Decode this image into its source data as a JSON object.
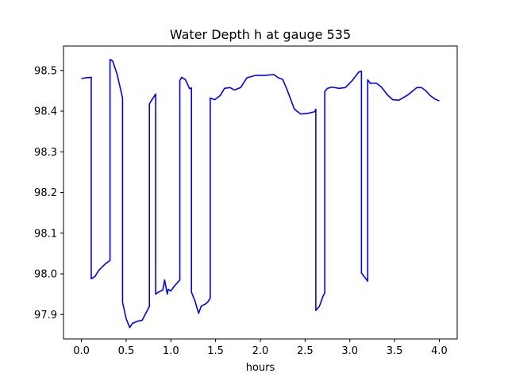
{
  "chart_data": {
    "type": "line",
    "title": "Water Depth h at gauge 535",
    "xlabel": "hours",
    "ylabel": "",
    "xlim": [
      -0.2,
      4.2
    ],
    "ylim": [
      97.84,
      98.56
    ],
    "xticks": [
      0.0,
      0.5,
      1.0,
      1.5,
      2.0,
      2.5,
      3.0,
      3.5,
      4.0
    ],
    "xtick_labels": [
      "0.0",
      "0.5",
      "1.0",
      "1.5",
      "2.0",
      "2.5",
      "3.0",
      "3.5",
      "4.0"
    ],
    "yticks": [
      97.9,
      98.0,
      98.1,
      98.2,
      98.3,
      98.4,
      98.5
    ],
    "ytick_labels": [
      "97.9",
      "98.0",
      "98.1",
      "98.2",
      "98.3",
      "98.4",
      "98.5"
    ],
    "grid": false,
    "legend": "none",
    "series": [
      {
        "color": "#0000ff",
        "x": [
          0.0,
          0.05,
          0.11,
          0.11,
          0.15,
          0.2,
          0.27,
          0.32,
          0.32,
          0.35,
          0.4,
          0.46,
          0.46,
          0.5,
          0.54,
          0.57,
          0.62,
          0.68,
          0.76,
          0.76,
          0.83,
          0.83,
          0.86,
          0.91,
          0.93,
          0.96,
          0.97,
          1.0,
          1.04,
          1.1,
          1.1,
          1.12,
          1.16,
          1.21,
          1.23,
          1.23,
          1.27,
          1.31,
          1.34,
          1.38,
          1.41,
          1.44,
          1.44,
          1.49,
          1.55,
          1.6,
          1.66,
          1.71,
          1.78,
          1.85,
          1.95,
          2.05,
          2.15,
          2.2,
          2.25,
          2.3,
          2.38,
          2.45,
          2.52,
          2.6,
          2.61,
          2.62,
          2.62,
          2.66,
          2.7,
          2.72,
          2.72,
          2.75,
          2.8,
          2.88,
          2.95,
          3.03,
          3.1,
          3.13,
          3.13,
          3.2,
          3.2,
          3.23,
          3.26,
          3.3,
          3.35,
          3.42,
          3.48,
          3.55,
          3.65,
          3.75,
          3.8,
          3.85,
          3.9,
          3.95,
          4.0
        ],
        "y": [
          98.48,
          98.482,
          98.483,
          97.988,
          97.993,
          98.01,
          98.025,
          98.033,
          98.527,
          98.523,
          98.49,
          98.432,
          97.93,
          97.89,
          97.868,
          97.878,
          97.883,
          97.886,
          97.92,
          98.418,
          98.442,
          97.95,
          97.955,
          97.96,
          97.985,
          97.95,
          97.962,
          97.958,
          97.97,
          97.985,
          98.475,
          98.483,
          98.478,
          98.455,
          98.457,
          97.955,
          97.933,
          97.903,
          97.921,
          97.925,
          97.93,
          97.94,
          98.432,
          98.428,
          98.438,
          98.456,
          98.458,
          98.452,
          98.458,
          98.482,
          98.488,
          98.488,
          98.49,
          98.482,
          98.478,
          98.452,
          98.405,
          98.393,
          98.394,
          98.398,
          98.4,
          98.405,
          97.91,
          97.92,
          97.945,
          97.953,
          98.448,
          98.456,
          98.459,
          98.456,
          98.458,
          98.476,
          98.496,
          98.498,
          98.002,
          97.982,
          98.477,
          98.468,
          98.469,
          98.468,
          98.46,
          98.44,
          98.428,
          98.427,
          98.44,
          98.458,
          98.458,
          98.45,
          98.438,
          98.43,
          98.425
        ]
      }
    ]
  }
}
